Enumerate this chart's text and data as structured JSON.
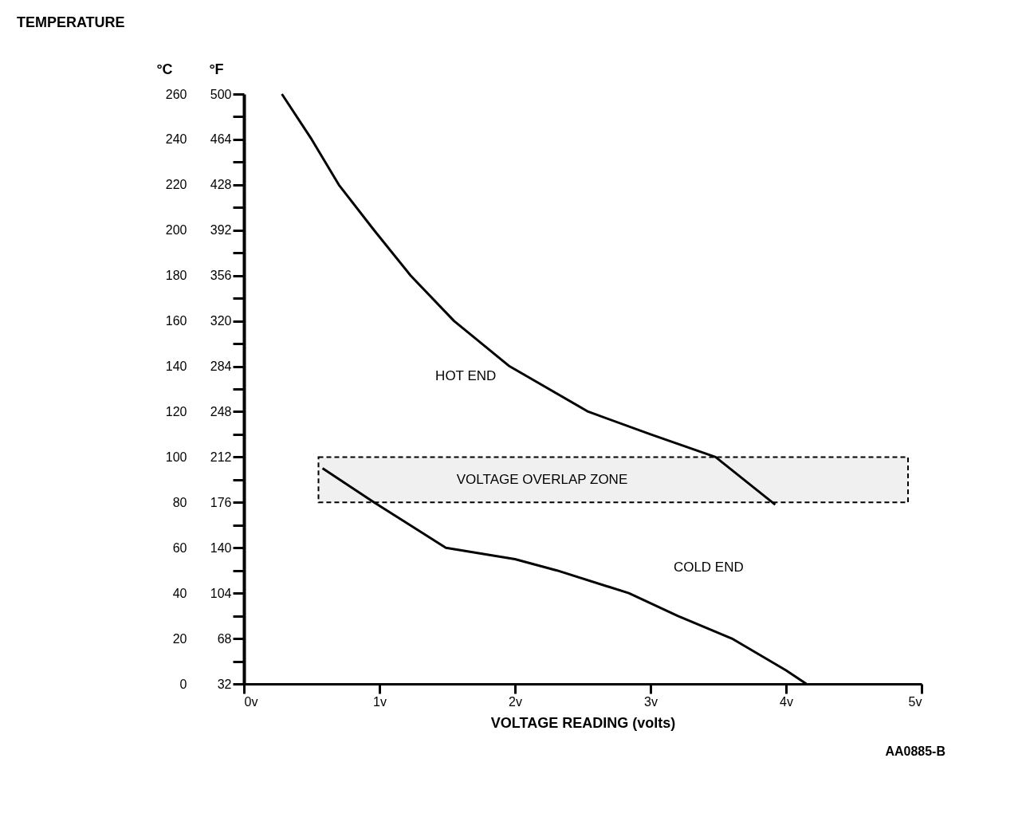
{
  "chart_data": {
    "type": "line",
    "title": "TEMPERATURE",
    "xlabel": "VOLTAGE READING (volts)",
    "ylabel": "°C",
    "y2label": "°F",
    "xlim": [
      0,
      5
    ],
    "xticks": [
      {
        "value": 0,
        "label": "0v"
      },
      {
        "value": 1,
        "label": "1v"
      },
      {
        "value": 2,
        "label": "2v"
      },
      {
        "value": 3,
        "label": "3v"
      },
      {
        "value": 4,
        "label": "4v"
      },
      {
        "value": 5,
        "label": "5v"
      }
    ],
    "ylim": [
      0,
      260
    ],
    "yticks": [
      0,
      20,
      40,
      60,
      80,
      100,
      120,
      140,
      160,
      180,
      200,
      220,
      240,
      260
    ],
    "y2lim": [
      32,
      500
    ],
    "y2ticks": [
      32,
      {
        "value": 50,
        "label": null
      },
      68,
      {
        "value": 86,
        "label": null
      },
      104,
      {
        "value": 122,
        "label": null
      },
      140,
      {
        "value": 158,
        "label": null
      },
      176,
      {
        "value": 194,
        "label": null
      },
      212,
      {
        "value": 230,
        "label": null
      },
      248,
      {
        "value": 266,
        "label": null
      },
      284,
      {
        "value": 302,
        "label": null
      },
      320,
      {
        "value": 338,
        "label": null
      },
      356,
      {
        "value": 374,
        "label": null
      },
      392,
      {
        "value": 410,
        "label": null
      },
      428,
      {
        "value": 446,
        "label": null
      },
      464,
      {
        "value": 482,
        "label": null
      },
      500
    ],
    "series": [
      {
        "name": "HOT END",
        "color": "#000000",
        "x": [
          0.28,
          0.5,
          0.7,
          0.96,
          1.23,
          1.55,
          1.96,
          2.54,
          3.0,
          3.48,
          3.92
        ],
        "values": [
          260,
          240,
          220,
          200,
          180,
          160,
          140,
          120,
          110,
          100,
          79
        ]
      },
      {
        "name": "COLD END",
        "color": "#000000",
        "x": [
          0.58,
          0.96,
          1.49,
          2.0,
          2.31,
          2.84,
          3.2,
          3.6,
          4.0,
          4.15
        ],
        "values": [
          95,
          80,
          60,
          55,
          50,
          40,
          30,
          20,
          6,
          0
        ]
      }
    ],
    "bands": [
      {
        "axis": "y2",
        "from": 176,
        "to": 212,
        "label": "VOLTAGE OVERLAP ZONE",
        "color": "#000000"
      }
    ],
    "annotations": [
      "AA0885-B"
    ],
    "grid": false,
    "marker": "none",
    "line_style": "solid"
  }
}
